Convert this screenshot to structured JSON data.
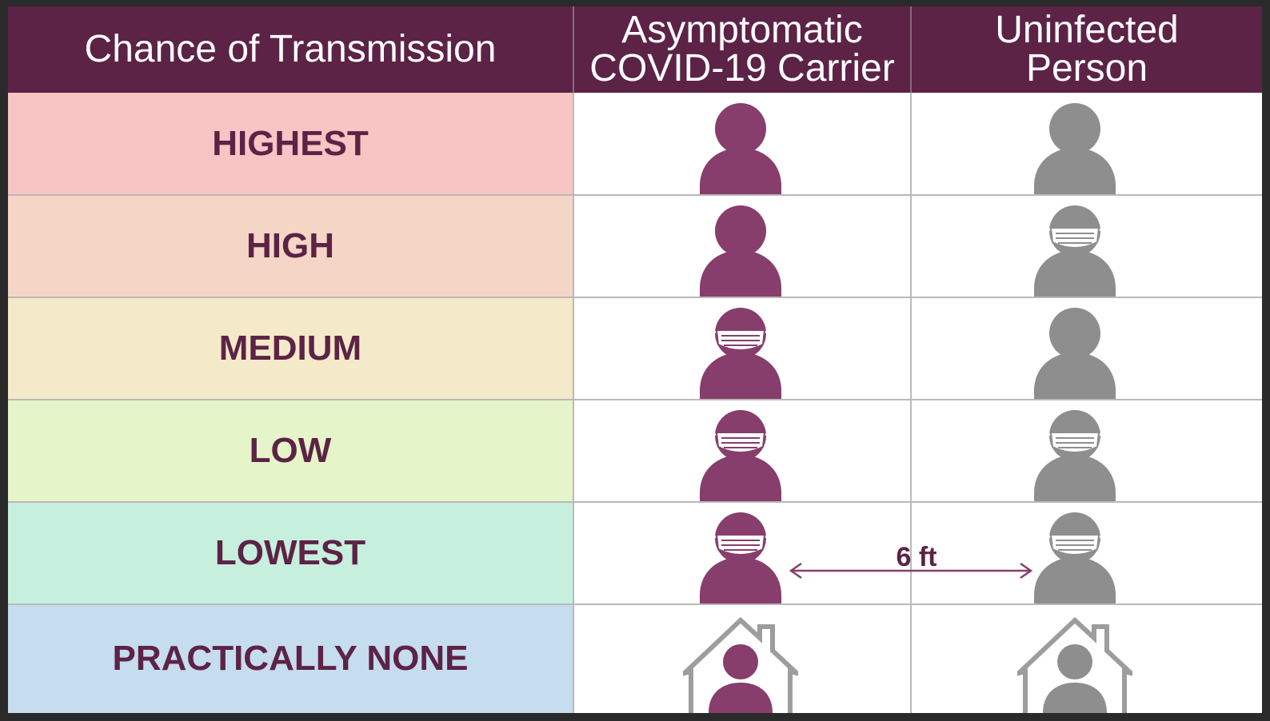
{
  "header": {
    "col1": "Chance of Transmission",
    "col2_line1": "Asymptomatic",
    "col2_line2": "COVID-19 Carrier",
    "col3_line1": "Uninfected",
    "col3_line2": "Person"
  },
  "rows": [
    {
      "label": "HIGHEST",
      "color": "#f7c5c4",
      "carrier": "person",
      "uninfected": "person"
    },
    {
      "label": "HIGH",
      "color": "#f5d6c6",
      "carrier": "person",
      "uninfected": "masked-person"
    },
    {
      "label": "MEDIUM",
      "color": "#f4e9c8",
      "carrier": "masked-person",
      "uninfected": "person"
    },
    {
      "label": "LOW",
      "color": "#e6f4c9",
      "carrier": "masked-person",
      "uninfected": "masked-person"
    },
    {
      "label": "LOWEST",
      "color": "#c6efdd",
      "carrier": "masked-person",
      "uninfected": "masked-person"
    },
    {
      "label": "PRACTICALLY NONE",
      "color": "#c6dcef",
      "carrier": "person-in-house",
      "uninfected": "person-in-house"
    }
  ],
  "distance_label": "6 ft",
  "colors": {
    "header_bg": "#5c2346",
    "label_text": "#5c2346",
    "carrier_icon": "#873e6c",
    "uninfected_icon": "#8e8e8e",
    "grid": "#b9b9b9"
  }
}
